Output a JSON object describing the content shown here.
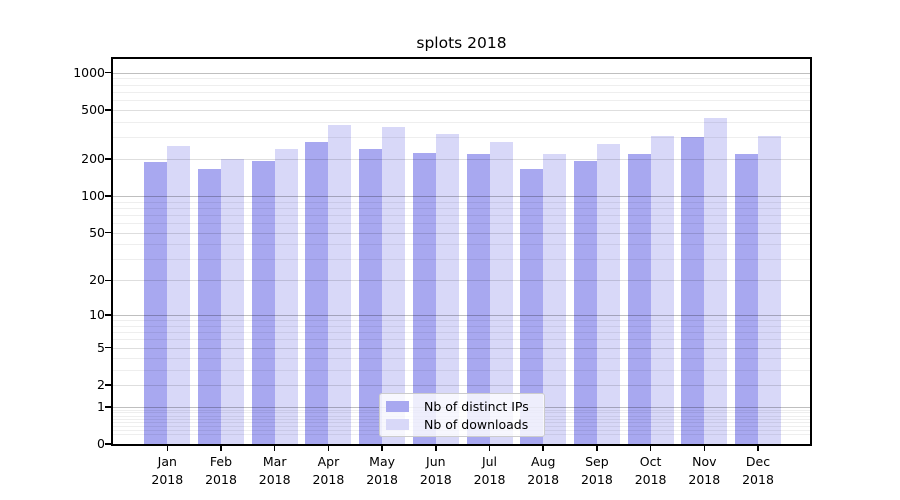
{
  "figure": {
    "title": "splots 2018",
    "background_color": "#ffffff"
  },
  "chart_data": {
    "type": "bar",
    "title": "splots 2018",
    "categories": [
      "Jan 2018",
      "Feb 2018",
      "Mar 2018",
      "Apr 2018",
      "May 2018",
      "Jun 2018",
      "Jul 2018",
      "Aug 2018",
      "Sep 2018",
      "Oct 2018",
      "Nov 2018",
      "Dec 2018"
    ],
    "series": [
      {
        "name": "Nb of distinct IPs",
        "color": "#a8a8f0",
        "values": [
          190,
          165,
          191,
          273,
          242,
          225,
          221,
          165,
          194,
          220,
          304,
          220
        ]
      },
      {
        "name": "Nb of downloads",
        "color": "#d8d8f8",
        "values": [
          257,
          201,
          241,
          375,
          365,
          317,
          273,
          218,
          266,
          310,
          433,
          307
        ]
      }
    ],
    "xlabel": "",
    "ylabel": "",
    "yscale": "log1p",
    "ylim": [
      0,
      1290
    ],
    "y_major_ticks": [
      0,
      1,
      2,
      5,
      10,
      20,
      50,
      100,
      200,
      500,
      1000
    ],
    "y_decade_ticks": [
      1,
      10,
      100,
      1000
    ],
    "y_minor_ticks": [
      0.2,
      0.3,
      0.4,
      0.5,
      0.6,
      0.7,
      0.8,
      0.9,
      3,
      4,
      6,
      7,
      8,
      9,
      30,
      40,
      60,
      70,
      80,
      90,
      300,
      400,
      600,
      700,
      800,
      900
    ],
    "grid": true,
    "legend_position": "lower center",
    "legend_entries": [
      "Nb of distinct IPs",
      "Nb of downloads"
    ]
  }
}
